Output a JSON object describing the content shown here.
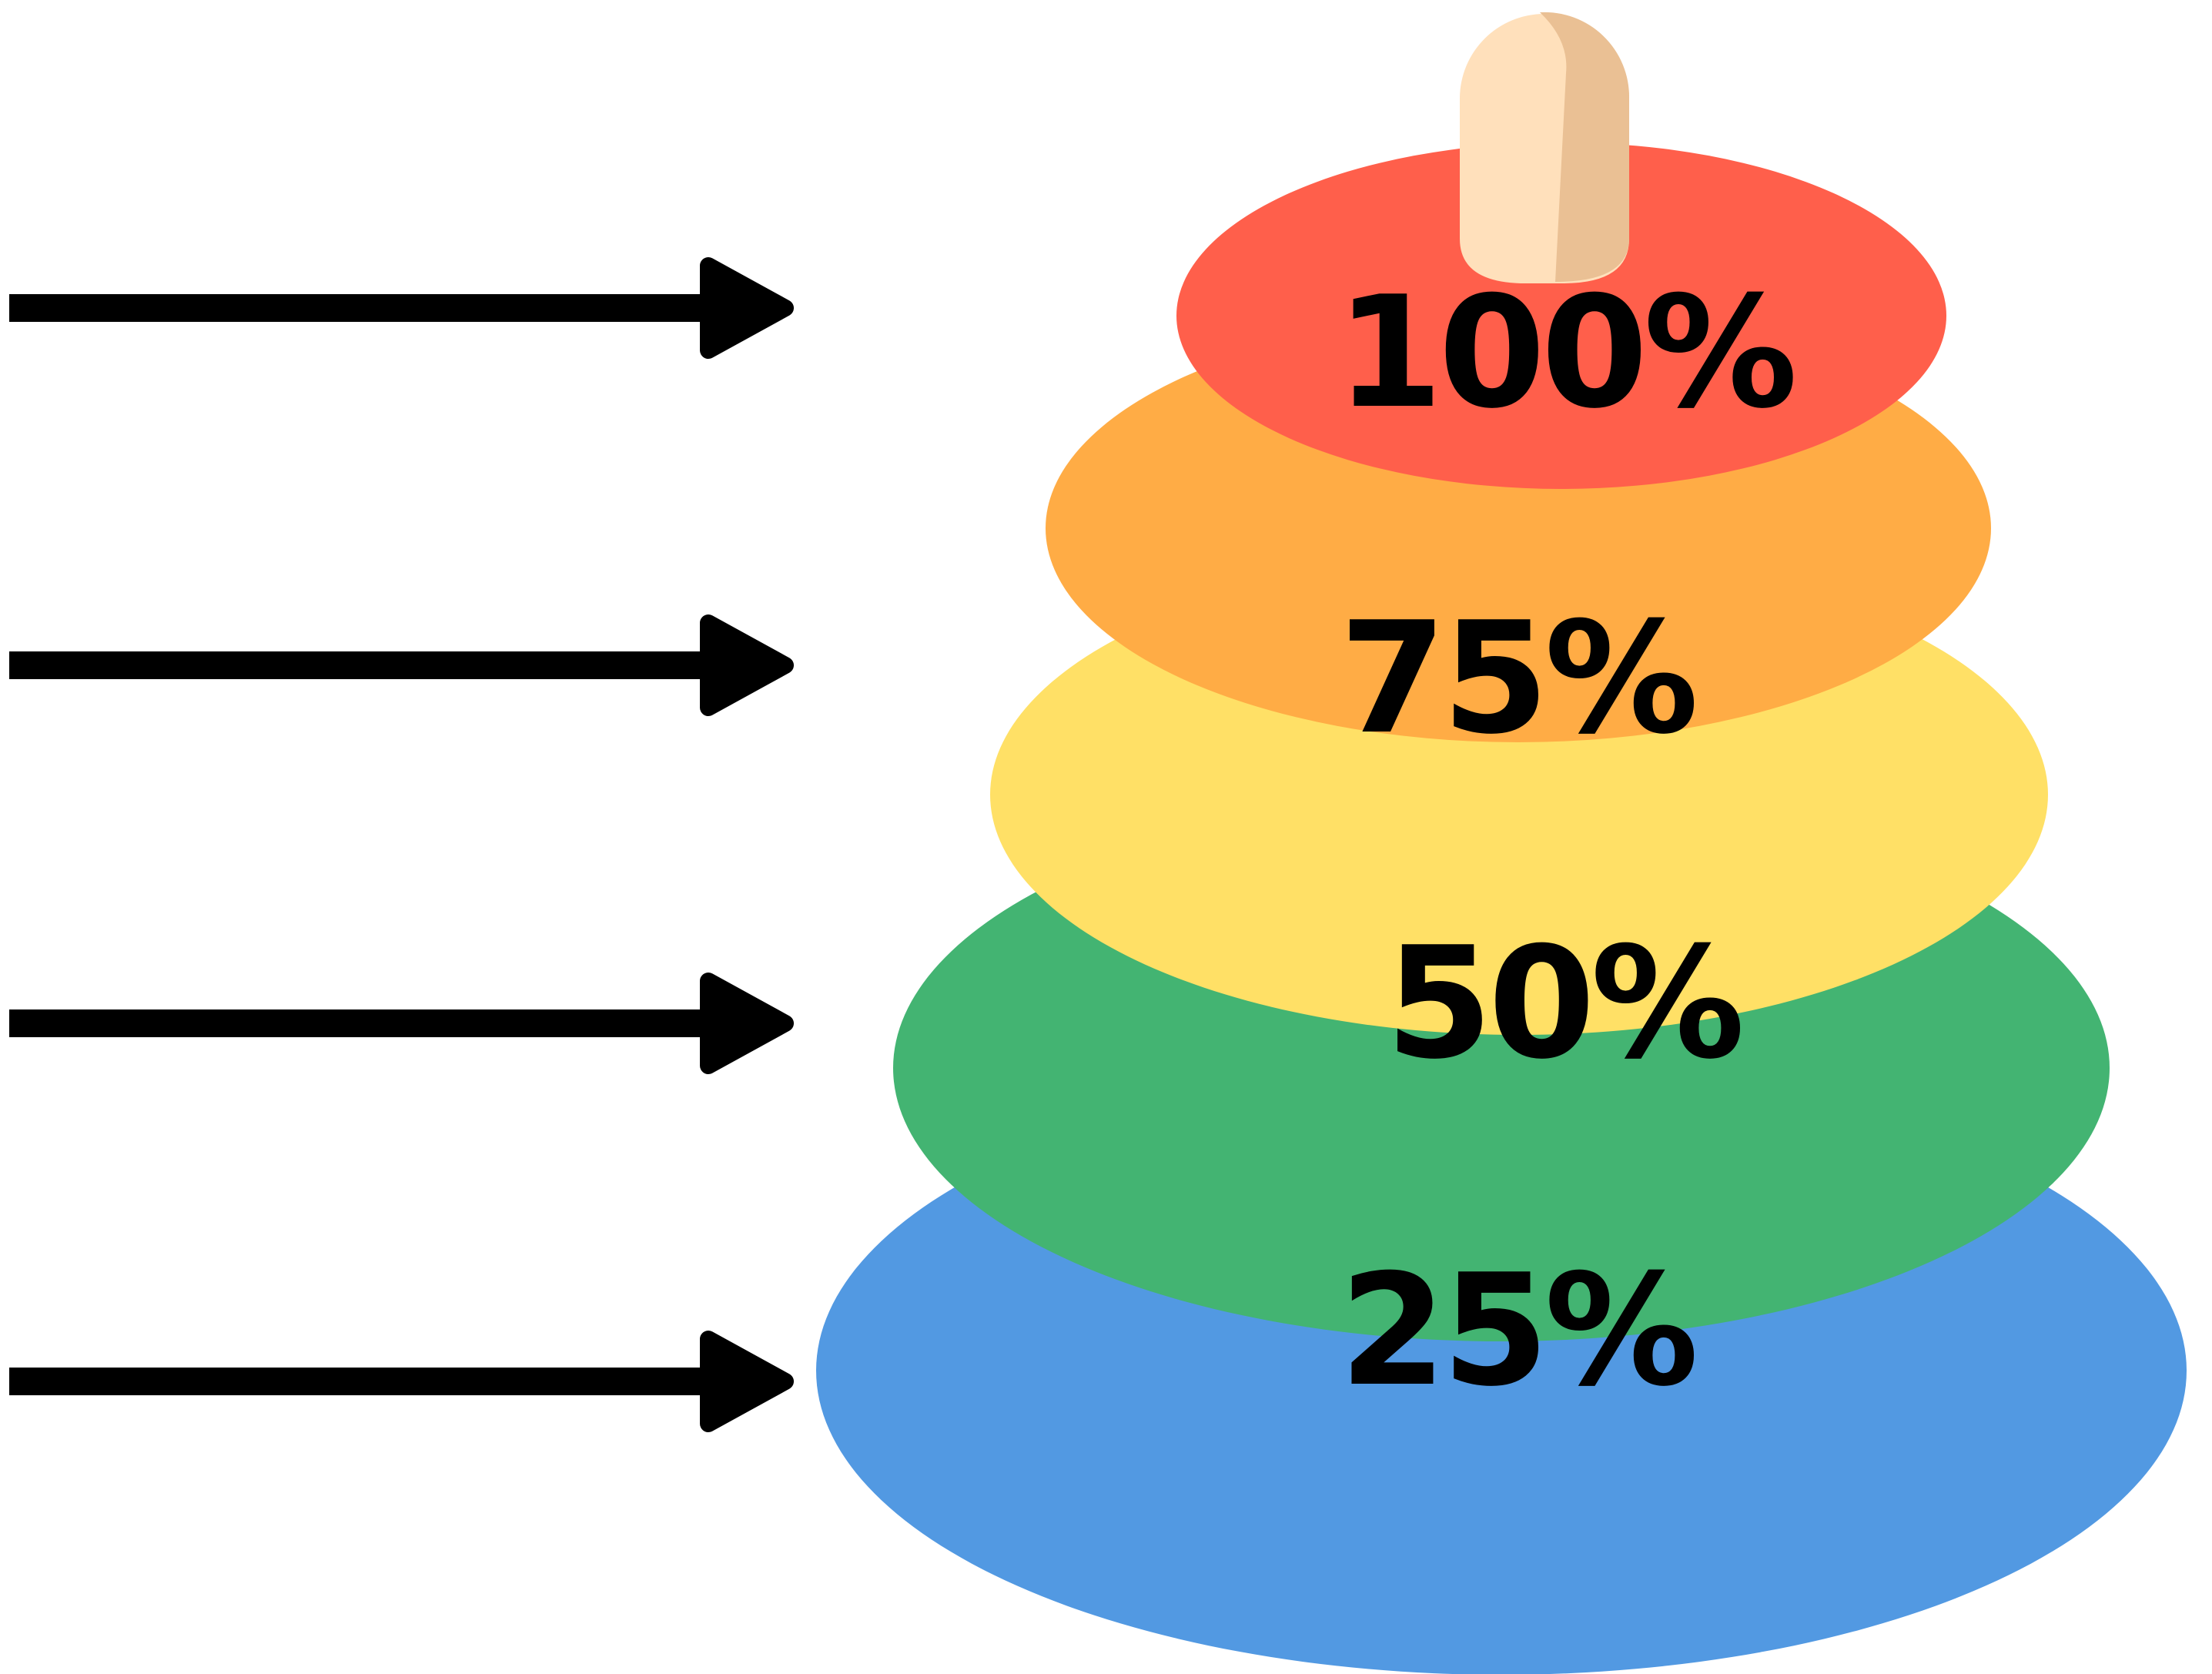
{
  "diagram": {
    "rings": [
      {
        "label": "100%",
        "level": 100,
        "color": "#FF5F4B"
      },
      {
        "label": "75%",
        "level": 75,
        "color": "#FFAC45"
      },
      {
        "label": "50%",
        "level": 50,
        "color": "#FFE066"
      },
      {
        "label": "25%",
        "level": 25,
        "color": "#43B472"
      }
    ],
    "base_color": "#5299E2",
    "peg_color_light": "#FFE0BB",
    "peg_color_shadow": "#EAC094",
    "arrow_color": "#000000"
  }
}
